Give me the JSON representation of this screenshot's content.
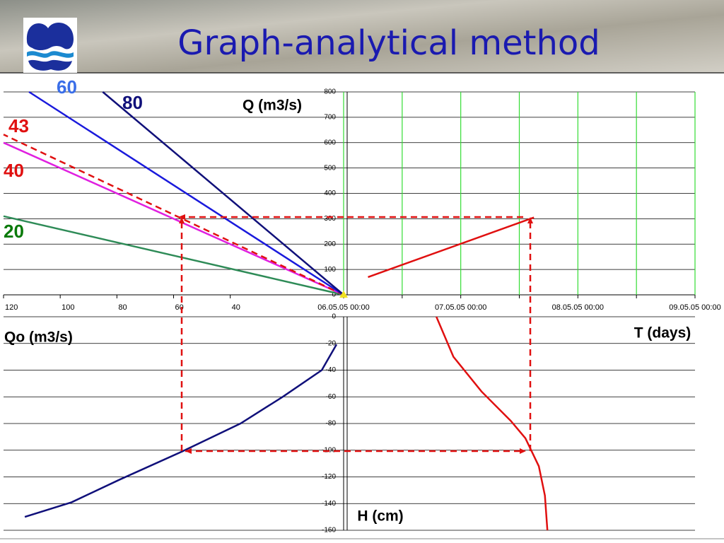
{
  "title": "Graph-analytical method",
  "chart_data": [
    {
      "type": "line",
      "xlabel": "Qo (m3/s)",
      "ylabel": "Q (m3/s)",
      "xlim": [
        120,
        0
      ],
      "xticks": [
        120,
        100,
        80,
        60,
        40
      ],
      "ylim": [
        0,
        800
      ],
      "yticks": [
        0,
        100,
        200,
        300,
        400,
        500,
        600,
        700,
        800
      ],
      "grid": true,
      "series": [
        {
          "name": "20",
          "color": "#2e8b57",
          "label_color": "#0a7a0a",
          "x": [
            0,
            120
          ],
          "values": [
            0,
            310
          ]
        },
        {
          "name": "40",
          "color": "#e020e0",
          "label_color": "#e01010",
          "x": [
            0,
            120
          ],
          "values": [
            0,
            600
          ]
        },
        {
          "name": "43",
          "color": "#e01010",
          "label_color": "#e01010",
          "dashed": true,
          "x": [
            0,
            120
          ],
          "values": [
            0,
            632
          ]
        },
        {
          "name": "60",
          "color": "#1a1adc",
          "label_color": "#3a6ee8",
          "x": [
            0,
            111
          ],
          "values": [
            0,
            800
          ]
        },
        {
          "name": "80",
          "color": "#10107a",
          "label_color": "#10107a",
          "x": [
            0,
            85
          ],
          "values": [
            0,
            800
          ]
        }
      ]
    },
    {
      "type": "line",
      "xlabel": "T (days)",
      "xlim": [
        "06.05.05 00:00",
        "09.05.05 00:00"
      ],
      "xticks": [
        "06.05.05 00:00",
        {
          "value": "06.05.05 12:00",
          "label": null
        },
        "07.05.05 00:00",
        {
          "value": "07.05.05 12:00",
          "label": null
        },
        "08.05.05 00:00",
        {
          "value": "08.05.05 12:00",
          "label": null
        },
        "09.05.05 00:00"
      ],
      "ylim": [
        0,
        800
      ],
      "grid_color": "#33dd33",
      "series": [
        {
          "color": "#e01010",
          "x": [
            "06.05.05 05:00",
            "07.05.05 15:00"
          ],
          "values": [
            70,
            305
          ]
        }
      ]
    },
    {
      "type": "line",
      "xlim": [
        120,
        0
      ],
      "ylim": [
        -160,
        0
      ],
      "yticks": [
        0,
        -20,
        -40,
        -60,
        -80,
        -100,
        -120,
        -140,
        -160
      ],
      "grid": true,
      "series": [
        {
          "color": "#10107a",
          "x": [
            2.5,
            7.7,
            21.5,
            36.4,
            57,
            79,
            96,
            112.5
          ],
          "values": [
            -20.7,
            -40,
            -60,
            -80,
            -101,
            -122,
            -139,
            -150
          ]
        }
      ]
    },
    {
      "type": "line",
      "ylabel": "H (cm)",
      "xlim": [
        "06.05.05 00:00",
        "09.05.05 00:00"
      ],
      "ylim": [
        -160,
        0
      ],
      "series": [
        {
          "color": "#e01010",
          "x": [
            "06.05.05 19:00",
            "06.05.05 22:30",
            "07.05.05 04:15",
            "07.05.05 10:15",
            "07.05.05 13:15",
            "07.05.05 16:00",
            "07.05.05 17:15",
            "07.05.05 17:45"
          ],
          "values": [
            0,
            -30,
            -56,
            -78,
            -91,
            -112,
            -134,
            -160
          ]
        }
      ]
    }
  ]
}
